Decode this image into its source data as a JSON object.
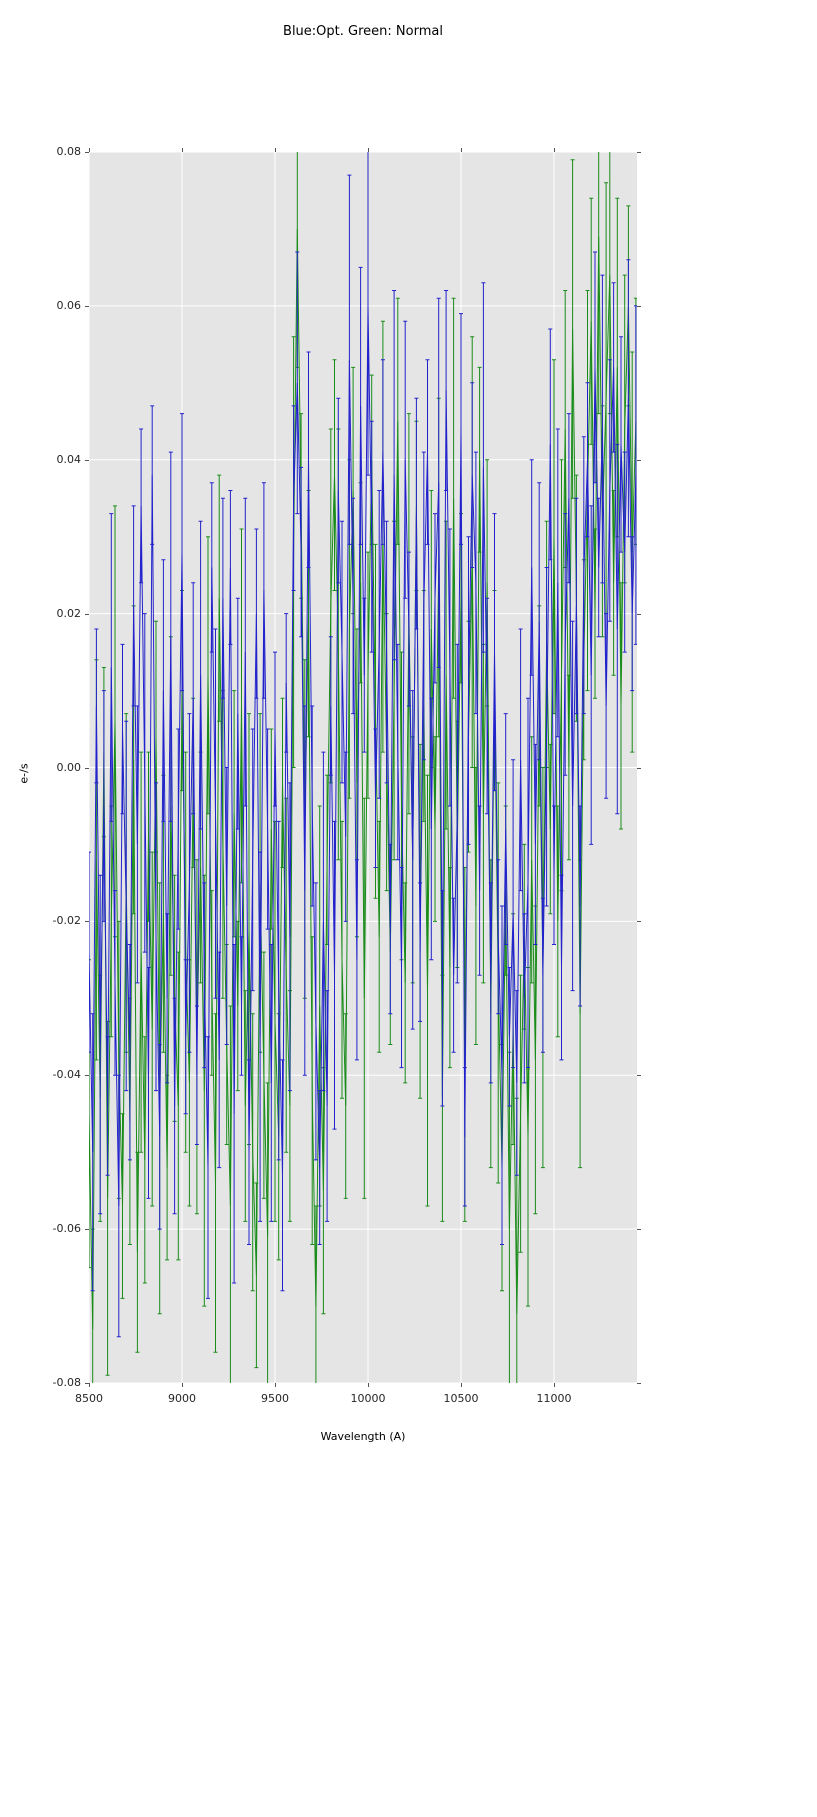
{
  "figure": {
    "title": "Blue:Opt. Green: Normal",
    "xlabel": "Wavelength (A)",
    "ylabel": "e-/s"
  },
  "chart_data": {
    "type": "line",
    "title": "Blue:Opt. Green: Normal",
    "xlabel": "Wavelength (A)",
    "ylabel": "e-/s",
    "xlim": [
      8500,
      11446
    ],
    "ylim": [
      -0.08,
      0.08
    ],
    "x_ticks": [
      8500,
      9000,
      9500,
      10000,
      10500,
      11000
    ],
    "y_tick_labels": [
      "0.08",
      "0.06",
      "0.04",
      "0.02",
      "0.00",
      "-0.02",
      "-0.04",
      "-0.06",
      "-0.08"
    ],
    "grid": true,
    "plot_background": "#e5e5e5",
    "grid_color": "#ffffff",
    "x_start": 8500,
    "x_step": 20,
    "series": [
      {
        "name": "Normal",
        "color": "#1a8c1a",
        "err_cycle": [
          0.02,
          0.013,
          0.026,
          0.016,
          0.011,
          0.023,
          0.015,
          0.028,
          0.018,
          0.012,
          0.022,
          0.016
        ],
        "values": [
          -0.045,
          -0.073,
          -0.012,
          -0.043,
          0.002,
          -0.056,
          -0.02,
          0.006,
          -0.038,
          -0.057,
          -0.015,
          -0.046,
          0.001,
          -0.063,
          -0.024,
          -0.051,
          -0.009,
          -0.034,
          0.004,
          -0.043,
          -0.019,
          -0.052,
          -0.005,
          -0.03,
          -0.044,
          0.01,
          -0.024,
          -0.041,
          -0.002,
          -0.035,
          -0.013,
          -0.042,
          0.012,
          -0.028,
          -0.054,
          0.022,
          -0.01,
          -0.036,
          -0.057,
          -0.006,
          -0.031,
          0.008,
          -0.044,
          -0.021,
          -0.05,
          -0.066,
          -0.015,
          -0.04,
          -0.061,
          -0.008,
          -0.033,
          -0.048,
          -0.002,
          -0.027,
          -0.044,
          0.028,
          0.07,
          0.034,
          -0.008,
          0.02,
          -0.042,
          -0.07,
          -0.031,
          -0.055,
          -0.012,
          0.021,
          0.038,
          0.016,
          -0.025,
          -0.044,
          0.018,
          0.036,
          -0.002,
          0.024,
          -0.03,
          0.012,
          0.04,
          0.006,
          -0.022,
          0.03,
          0.002,
          -0.024,
          0.01,
          0.045,
          -0.005,
          -0.028,
          0.02,
          -0.012,
          0.034,
          -0.02,
          0.008,
          -0.029,
          0.018,
          -0.008,
          0.026,
          -0.043,
          0.012,
          -0.026,
          0.035,
          -0.01,
          0.022,
          -0.036,
          0.004,
          0.028,
          -0.018,
          0.04,
          -0.006,
          0.024,
          -0.032,
          0.01,
          -0.028,
          -0.052,
          -0.016,
          -0.06,
          -0.034,
          -0.071,
          -0.045,
          -0.022,
          -0.048,
          -0.012,
          -0.038,
          0.008,
          -0.026,
          0.016,
          -0.008,
          0.03,
          -0.02,
          0.012,
          0.044,
          0.0,
          0.057,
          0.022,
          -0.032,
          0.014,
          0.036,
          0.058,
          0.02,
          0.069,
          0.032,
          0.048,
          0.064,
          0.024,
          0.052,
          0.008,
          0.044,
          0.06,
          0.028,
          0.045
        ]
      },
      {
        "name": "Opt",
        "color": "#2222cc",
        "err_cycle": [
          0.013,
          0.018,
          0.01,
          0.022,
          0.015,
          0.009,
          0.02,
          0.012,
          0.017,
          0.011,
          0.024,
          0.014
        ],
        "values": [
          -0.024,
          -0.05,
          0.008,
          -0.036,
          -0.005,
          -0.044,
          0.013,
          -0.028,
          -0.057,
          0.005,
          -0.018,
          -0.037,
          0.021,
          -0.01,
          0.034,
          -0.002,
          -0.041,
          0.038,
          -0.022,
          -0.048,
          0.01,
          -0.03,
          0.017,
          -0.044,
          -0.008,
          0.028,
          -0.035,
          -0.015,
          0.009,
          -0.04,
          0.012,
          -0.027,
          -0.052,
          0.026,
          -0.006,
          -0.038,
          0.022,
          -0.018,
          0.026,
          -0.045,
          0.007,
          -0.031,
          0.015,
          -0.05,
          -0.012,
          0.02,
          -0.035,
          0.023,
          -0.008,
          -0.041,
          0.005,
          -0.029,
          -0.053,
          0.011,
          -0.022,
          0.035,
          0.05,
          0.028,
          -0.016,
          0.04,
          -0.005,
          -0.033,
          -0.052,
          -0.02,
          -0.044,
          0.008,
          -0.027,
          0.036,
          0.015,
          -0.009,
          0.053,
          0.021,
          -0.025,
          0.047,
          0.012,
          0.06,
          0.03,
          -0.004,
          0.016,
          0.041,
          0.015,
          -0.021,
          0.038,
          0.002,
          -0.026,
          0.04,
          0.018,
          -0.012,
          0.033,
          -0.024,
          0.021,
          0.041,
          -0.008,
          0.022,
          0.037,
          -0.03,
          0.049,
          0.013,
          -0.027,
          -0.006,
          0.044,
          -0.048,
          0.01,
          0.038,
          0.024,
          -0.016,
          0.039,
          0.008,
          -0.028,
          0.015,
          -0.022,
          -0.04,
          -0.008,
          -0.035,
          -0.019,
          -0.041,
          0.001,
          -0.03,
          -0.015,
          0.026,
          -0.01,
          0.019,
          -0.027,
          0.004,
          0.042,
          -0.014,
          0.024,
          -0.026,
          0.016,
          0.035,
          -0.005,
          0.021,
          -0.018,
          0.025,
          0.04,
          0.012,
          0.052,
          0.026,
          0.044,
          0.008,
          0.036,
          0.052,
          0.018,
          0.042,
          0.028,
          0.048,
          0.02,
          0.038
        ]
      }
    ]
  }
}
